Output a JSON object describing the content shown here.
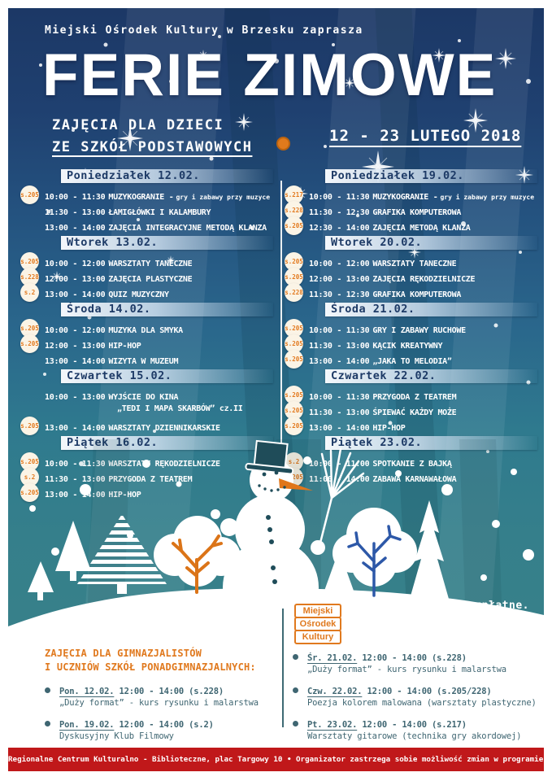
{
  "header": {
    "tagline": "Miejski Ośrodek Kultury w Brzesku zaprasza",
    "title": "FERIE ZIMOWE",
    "subtitle_line1": "ZAJĘCIA DLA DZIECI",
    "subtitle_line2": "ZE SZKÓŁ PODSTAWOWYCH",
    "date_range": "12 - 23 LUTEGO 2018"
  },
  "schedule": {
    "left": [
      {
        "day": "Poniedziałek 12.02.",
        "rows": [
          {
            "room": "s.205",
            "time": "10:00 - 11:30",
            "title": "MUZYKOGRANIE -",
            "note": "gry i zabawy przy muzyce"
          },
          {
            "room": "",
            "time": "11:30 - 13:00",
            "title": "ŁAMIGŁÓWKI I KALAMBURY"
          },
          {
            "room": "",
            "time": "13:00 - 14:00",
            "title": "ZAJĘCIA INTEGRACYJNE METODĄ KLANZA"
          }
        ]
      },
      {
        "day": "Wtorek 13.02.",
        "rows": [
          {
            "room": "s.205",
            "time": "10:00 - 12:00",
            "title": "WARSZTATY TANECZNE"
          },
          {
            "room": "s.228",
            "time": "12:00 - 13:00",
            "title": "ZAJĘCIA PLASTYCZNE"
          },
          {
            "room": "s.2",
            "time": "13:00 - 14:00",
            "title": "QUIZ MUZYCZNY"
          }
        ]
      },
      {
        "day": "Środa 14.02.",
        "rows": [
          {
            "room": "s.205",
            "time": "10:00 - 12:00",
            "title": "MUZYKA DLA SMYKA"
          },
          {
            "room": "s.205",
            "time": "12:00 - 13:00",
            "title": "HIP-HOP"
          },
          {
            "room": "",
            "time": "13:00 - 14:00",
            "title": "WIZYTA W MUZEUM"
          }
        ]
      },
      {
        "day": "Czwartek 15.02.",
        "rows": [
          {
            "room": "",
            "time": "10:00 - 13:00",
            "title": "WYJŚCIE DO KINA",
            "title2": "„TEDI I MAPA SKARBÓW” cz.II"
          },
          {
            "room": "s.205",
            "time": "13:00 - 14:00",
            "title": "WARSZTATY DZIENNIKARSKIE"
          }
        ]
      },
      {
        "day": "Piątek 16.02.",
        "rows": [
          {
            "room": "s.205",
            "time": "10:00 - 11:30",
            "title": "WARSZTATY RĘKODZIELNICZE"
          },
          {
            "room": "s.2",
            "time": "11:30 - 13:00",
            "title": "PRZYGODA Z TEATREM"
          },
          {
            "room": "s.205",
            "time": "13:00 - 14:00",
            "title": "HIP-HOP"
          }
        ]
      }
    ],
    "right": [
      {
        "day": "Poniedziałek 19.02.",
        "rows": [
          {
            "room": "s.217",
            "time": "10:00 - 11:30",
            "title": "MUZYKOGRANIE -",
            "note": "gry i zabawy przy muzyce"
          },
          {
            "room": "s.228",
            "time": "11:30 - 12:30",
            "title": "GRAFIKA KOMPUTEROWA"
          },
          {
            "room": "s.205",
            "time": "12:30 - 14:00",
            "title": "ZAJĘCIA METODĄ KLANZA"
          }
        ]
      },
      {
        "day": "Wtorek 20.02.",
        "rows": [
          {
            "room": "s.205",
            "time": "10:00 - 12:00",
            "title": "WARSZTATY TANECZNE"
          },
          {
            "room": "s.205",
            "time": "12:00 - 13:00",
            "title": "ZAJĘCIA RĘKODZIELNICZE"
          },
          {
            "room": "s.228",
            "time": "11:30 - 12:30",
            "title": "GRAFIKA KOMPUTEROWA"
          }
        ]
      },
      {
        "day": "Środa 21.02.",
        "rows": [
          {
            "room": "s.205",
            "time": "10:00 - 11:30",
            "title": "GRY I ZABAWY RUCHOWE"
          },
          {
            "room": "s.205",
            "time": "11:30 - 13:00",
            "title": "KĄCIK KREATYWNY"
          },
          {
            "room": "s.205",
            "time": "13:00 - 14:00",
            "title": "„JAKA TO MELODIA”"
          }
        ]
      },
      {
        "day": "Czwartek 22.02.",
        "rows": [
          {
            "room": "s.205",
            "time": "10:00 - 11:30",
            "title": "PRZYGODA Z TEATREM"
          },
          {
            "room": "s.205",
            "time": "11:30 - 13:00",
            "title": "ŚPIEWAĆ KAŻDY MOŻE"
          },
          {
            "room": "s.205",
            "time": "13:00 - 14:00",
            "title": "HIP-HOP"
          }
        ]
      },
      {
        "day": "Piątek 23.02.",
        "rows": [
          {
            "room": "s.2",
            "time": "10:00 - 11:00",
            "title": "SPOTKANIE Z BAJKĄ"
          },
          {
            "room": "s.205",
            "time": "11:00 - 14:00",
            "title": "ZABAWA KARNAWAŁOWA"
          }
        ]
      }
    ]
  },
  "scene": {
    "free_label": "Zajęcia bezpłatne.",
    "logo_lines": [
      "Miejski",
      "Ośrodek",
      "Kultury"
    ]
  },
  "secondary": {
    "heading_line1": "ZAJĘCIA DLA GIMNAZJALISTÓW",
    "heading_line2": "I UCZNIÓW SZKÓŁ PONADGIMNAZJALNYCH:",
    "left_items": [
      {
        "date": "Pon. 12.02.",
        "rest": "12:00 - 14:00 (s.228)",
        "desc": "„Duży format” - kurs rysunku i malarstwa"
      },
      {
        "date": "Pon. 19.02.",
        "rest": "12:00 - 14:00 (s.2)",
        "desc": "Dyskusyjny Klub Filmowy"
      }
    ],
    "right_items": [
      {
        "date": "Śr. 21.02.",
        "rest": "12:00 - 14:00 (s.228)",
        "desc": "„Duży format” - kurs rysunku i malarstwa"
      },
      {
        "date": "Czw. 22.02.",
        "rest": "12:00 - 14:00 (s.205/228)",
        "desc": "Poezja kolorem malowana (warsztaty plastyczne)"
      },
      {
        "date": "Pt. 23.02.",
        "rest": "12:00 - 14:00 (s.217)",
        "desc": "Warsztaty gitarowe (technika gry akordowej)"
      }
    ]
  },
  "footer": {
    "text": "Regionalne Centrum Kulturalno - Biblioteczne, plac Targowy 10 • Organizator zastrzega sobie możliwość zmian w programie."
  },
  "colors": {
    "navy_top": "#1c3866",
    "teal_bottom": "#3a8289",
    "accent_orange": "#e0791e",
    "badge_bg": "#fbf4e6",
    "day_bar_text": "#1d3a66",
    "footer_red": "#c0181a",
    "secondary_text": "#3f6672"
  }
}
